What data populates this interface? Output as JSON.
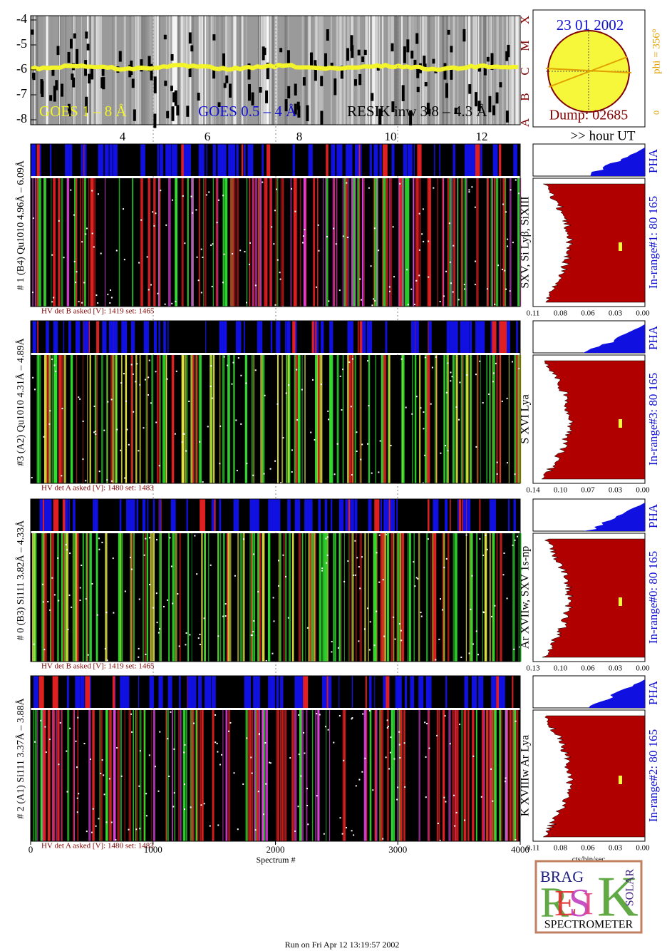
{
  "goes_panel": {
    "yticks": [
      "-4",
      "-5",
      "-6",
      "-7",
      "-8"
    ],
    "legend": [
      "GOES 1 – 8 Å",
      "GOES 0.5 – 4 Å",
      "RESIK inw 3.8 – 4.3 Å"
    ],
    "hour_ticks": [
      "4",
      "6",
      "8",
      "10",
      "12"
    ],
    "hour_label": ">> hour UT"
  },
  "sun_panel": {
    "date": "23 01 2002",
    "dump": "Dump: 02685",
    "phi": "phi = 356°",
    "zero": "0",
    "flags": [
      "A",
      "B",
      "C",
      "M",
      "X"
    ]
  },
  "detectors": [
    {
      "label": "# 1 (B4) Qu1010  4.96Å – 6.09Å",
      "lines": "SXV, Si Lyβ, SiXIII",
      "hv": "HV det B asked [V]:  1419 set:  1465",
      "pha": "PHA",
      "range": "In-range#1:   80 165",
      "ticks": [
        "0.11",
        "0.08",
        "0.06",
        "0.03",
        "0.00"
      ]
    },
    {
      "label": "#3 (A2) Qu1010  4.31Å – 4.89Å",
      "lines": "S XVI Lya",
      "hv": "HV det A asked [V]:  1480 set:  1483",
      "pha": "PHA",
      "range": "In-range#3:   80 165",
      "ticks": [
        "0.14",
        "0.10",
        "0.07",
        "0.03",
        "0.00"
      ]
    },
    {
      "label": "# 0 (B3) Si111  3.82Å – 4.33Å",
      "lines": "Ar XVIIw,  SXV 1s-np",
      "hv": "HV det B asked [V]:  1419 set:  1465",
      "pha": "PHA",
      "range": "In-range#0:   80 165",
      "ticks": [
        "0.13",
        "0.10",
        "0.06",
        "0.03",
        "0.00"
      ]
    },
    {
      "label": "# 2 (A1) Si111  3.37Å – 3.88Å",
      "lines": "K XVIIIw  Ar Lya",
      "hv": "HV det A asked [V]:  1480 set:  1483",
      "pha": "PHA",
      "range": "In-range#2:   80 165",
      "ticks": [
        "0.11",
        "0.08",
        "0.06",
        "0.03",
        "0.00"
      ]
    }
  ],
  "spectrum_axis": {
    "ticks": [
      "0",
      "1000",
      "2000",
      "3000",
      "4000"
    ],
    "label": "Spectrum #"
  },
  "rate_axis_label": "cts/bin/sec",
  "logo": {
    "bragg": "BRAG",
    "resik": [
      "R",
      "E",
      "S",
      "I",
      "K"
    ],
    "solar": "SOLAR",
    "name": "SPECTROMETER"
  },
  "footer": "Run on Fri Apr 12 13:19:57 2002"
}
